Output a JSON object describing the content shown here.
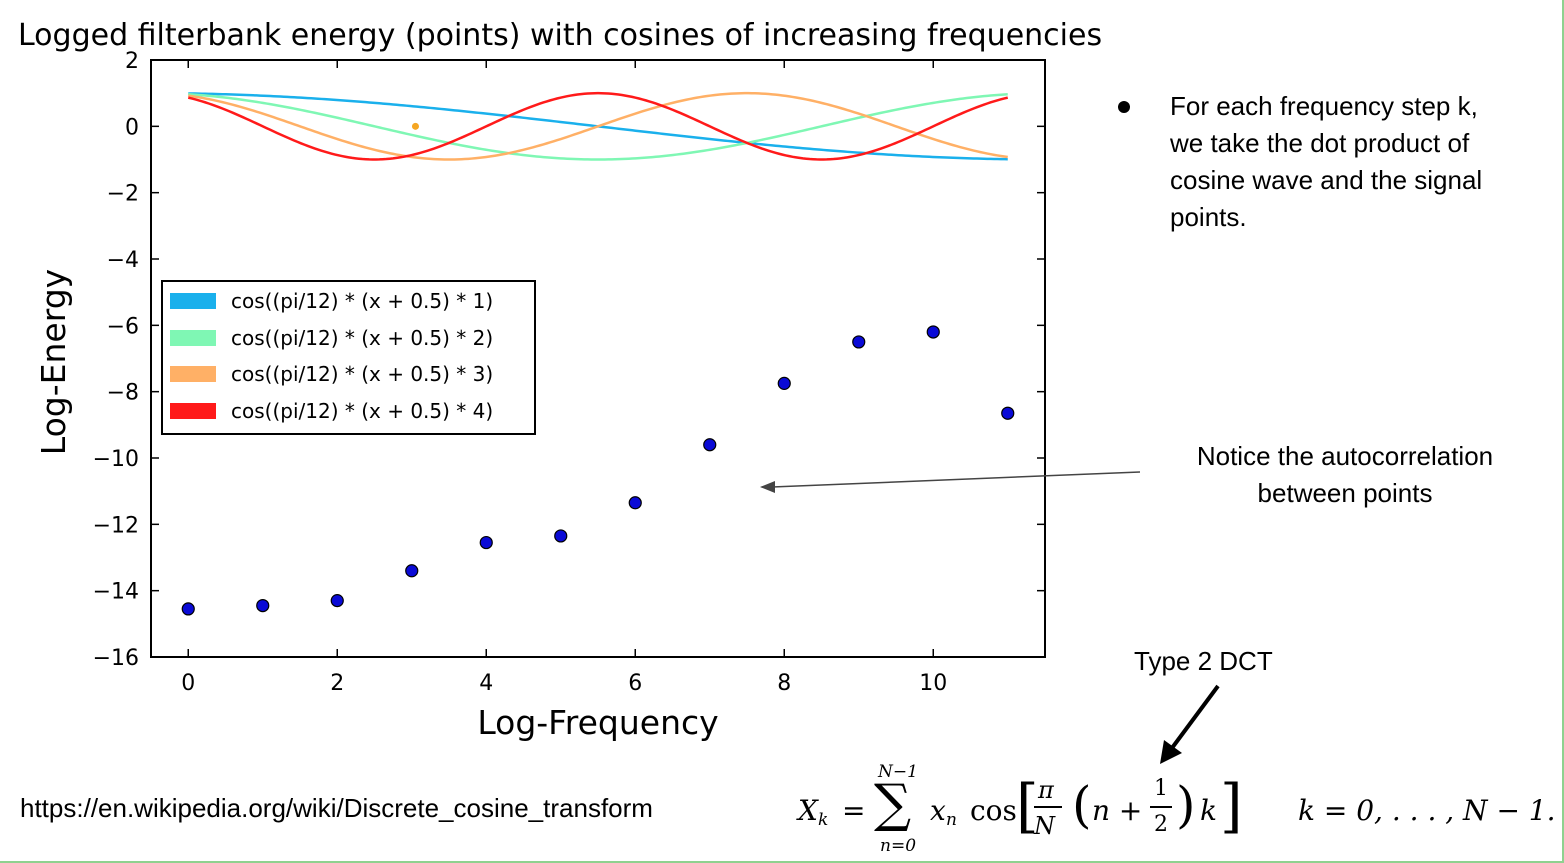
{
  "chart_data": {
    "type": "scatter",
    "title": "Logged filterbank energy (points) with cosines of increasing frequencies",
    "xlabel": "Log-Frequency",
    "ylabel": "Log-Energy",
    "xlim": [
      -0.5,
      11.5
    ],
    "ylim": [
      -16,
      2
    ],
    "xticks": [
      0,
      2,
      4,
      6,
      8,
      10
    ],
    "yticks": [
      2,
      0,
      -2,
      -4,
      -6,
      -8,
      -10,
      -12,
      -14,
      -16
    ],
    "xtick_labels": [
      "0",
      "2",
      "4",
      "6",
      "8",
      "10"
    ],
    "ytick_labels": [
      "2",
      "0",
      "−2",
      "−4",
      "−6",
      "−8",
      "−10",
      "−12",
      "−14",
      "−16"
    ],
    "grid": false,
    "legend_position": "center-left",
    "points": {
      "x": [
        0,
        1,
        2,
        3,
        4,
        5,
        6,
        7,
        8,
        9,
        10,
        11
      ],
      "y": [
        -14.55,
        -14.45,
        -14.3,
        -13.4,
        -12.55,
        -12.35,
        -11.35,
        -9.6,
        -7.75,
        -6.5,
        -6.2,
        -8.65
      ],
      "color": "#0a0ad6"
    },
    "stray_point": {
      "x": 3.05,
      "y": 0.0,
      "color": "#f5a623"
    },
    "series": [
      {
        "name": "cos((pi/12) * (x + 0.5) * 1)",
        "k": 1,
        "color": "#1ab0ec"
      },
      {
        "name": "cos((pi/12) * (x + 0.5) * 2)",
        "k": 2,
        "color": "#7ff7b4"
      },
      {
        "name": "cos((pi/12) * (x + 0.5) * 3)",
        "k": 3,
        "color": "#ffb066"
      },
      {
        "name": "cos((pi/12) * (x + 0.5) * 4)",
        "k": 4,
        "color": "#ff1a1a"
      }
    ]
  },
  "annotations": {
    "bullet": "For each frequency step k, we take the dot product of cosine wave and the signal points.",
    "notice": "Notice the autocorrelation between points",
    "dct_label": "Type 2 DCT",
    "url": "https://en.wikipedia.org/wiki/Discrete_cosine_transform",
    "formula": {
      "lhs": "X",
      "lhs_sub": "k",
      "equals": "=",
      "sum_upper": "N−1",
      "sum_lower": "n=0",
      "sigma": "∑",
      "xn": "x",
      "xn_sub": "n",
      "cos": "cos",
      "pi": "π",
      "N": "N",
      "n_plus": "n +",
      "one": "1",
      "two": "2",
      "k": "k",
      "range": "k = 0, . . . , N − 1."
    }
  }
}
